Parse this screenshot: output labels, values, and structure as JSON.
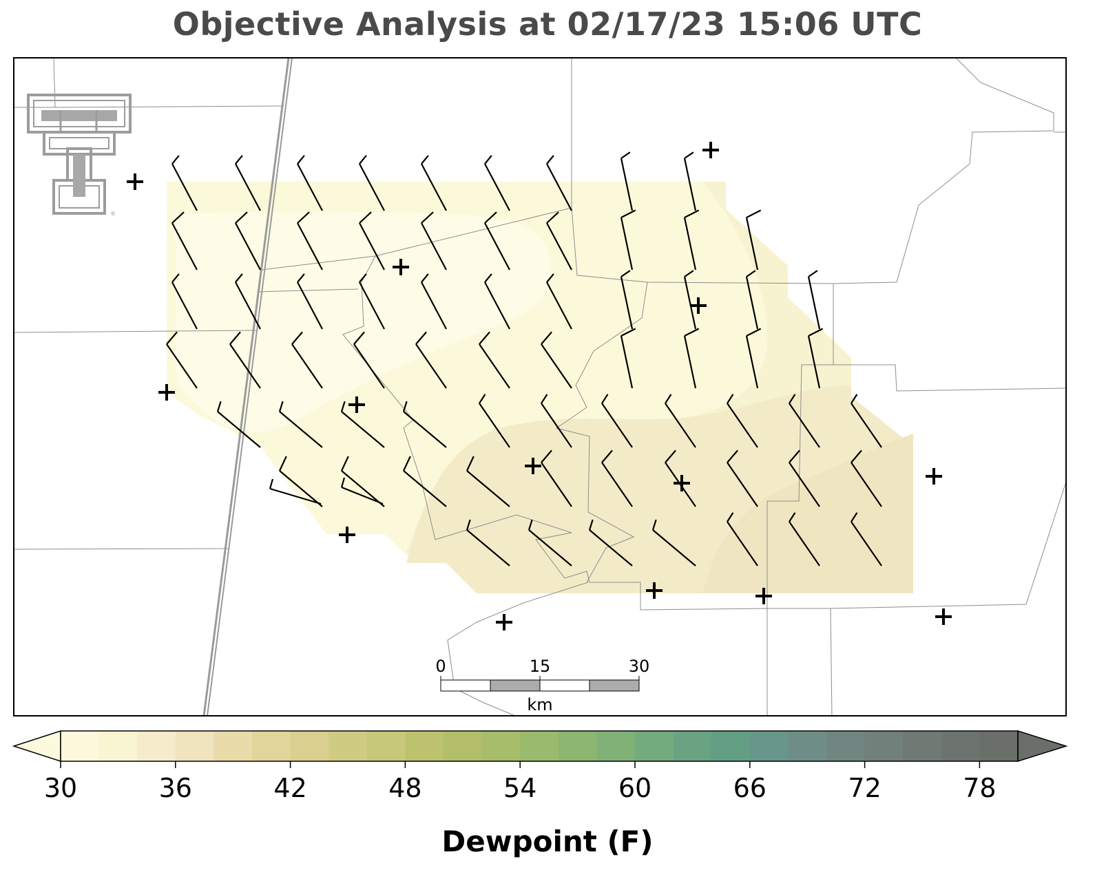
{
  "title": "Objective Analysis at 02/17/23 15:06 UTC",
  "colorbar": {
    "label": "Dewpoint (F)",
    "tick_labels": [
      "30",
      "36",
      "42",
      "48",
      "54",
      "60",
      "66",
      "72",
      "78"
    ],
    "min": 30,
    "max": 80,
    "colors": [
      "#fdf9dc",
      "#f9f4d2",
      "#f4eccb",
      "#efe4bd",
      "#e9dcaa",
      "#e2d599",
      "#d9d08f",
      "#cfcb82",
      "#c7c879",
      "#bdc26f",
      "#b2be6a",
      "#a7bd69",
      "#9aba6d",
      "#8db672",
      "#80b278",
      "#74ab7d",
      "#6aa381",
      "#639e84",
      "#69968a",
      "#6e8d86",
      "#718680",
      "#71807a",
      "#6f7a74",
      "#6d746f",
      "#6a6f6a"
    ],
    "under_color": "#fdf9dc",
    "over_color": "#6a6f6a"
  },
  "scale_bar": {
    "ticks": [
      "0",
      "15",
      "30"
    ],
    "unit": "km"
  },
  "field_colors": {
    "outer": "#fcf9da",
    "inner_light": "#fefce6",
    "mid": "#f7f2d0",
    "south": "#f3ebc8",
    "southeast": "#efe6c1"
  },
  "logo": "texas-tech-double-t-logo",
  "wind_barbs": {
    "rows": [
      {
        "y": 262,
        "x": [
          286,
          378,
          468,
          558,
          648,
          740,
          830,
          918,
          1010
        ]
      },
      {
        "y": 348,
        "x": [
          286,
          378,
          468,
          558,
          648,
          740,
          830,
          918,
          1010,
          1100
        ]
      },
      {
        "y": 434,
        "x": [
          286,
          378,
          468,
          558,
          648,
          740,
          830,
          918,
          1010,
          1100,
          1190
        ]
      },
      {
        "y": 520,
        "x": [
          286,
          378,
          468,
          558,
          648,
          740,
          830,
          918,
          1010,
          1100,
          1190
        ]
      },
      {
        "y": 606,
        "x": [
          378,
          468,
          558,
          648,
          740,
          830,
          918,
          1010,
          1100,
          1190,
          1280
        ]
      },
      {
        "y": 692,
        "x": [
          468,
          558,
          648,
          740,
          830,
          918,
          1010,
          1100,
          1190,
          1280
        ]
      },
      {
        "y": 778,
        "x": [
          740,
          830,
          918,
          1010,
          1100,
          1190,
          1280
        ]
      }
    ]
  },
  "stations": []
}
